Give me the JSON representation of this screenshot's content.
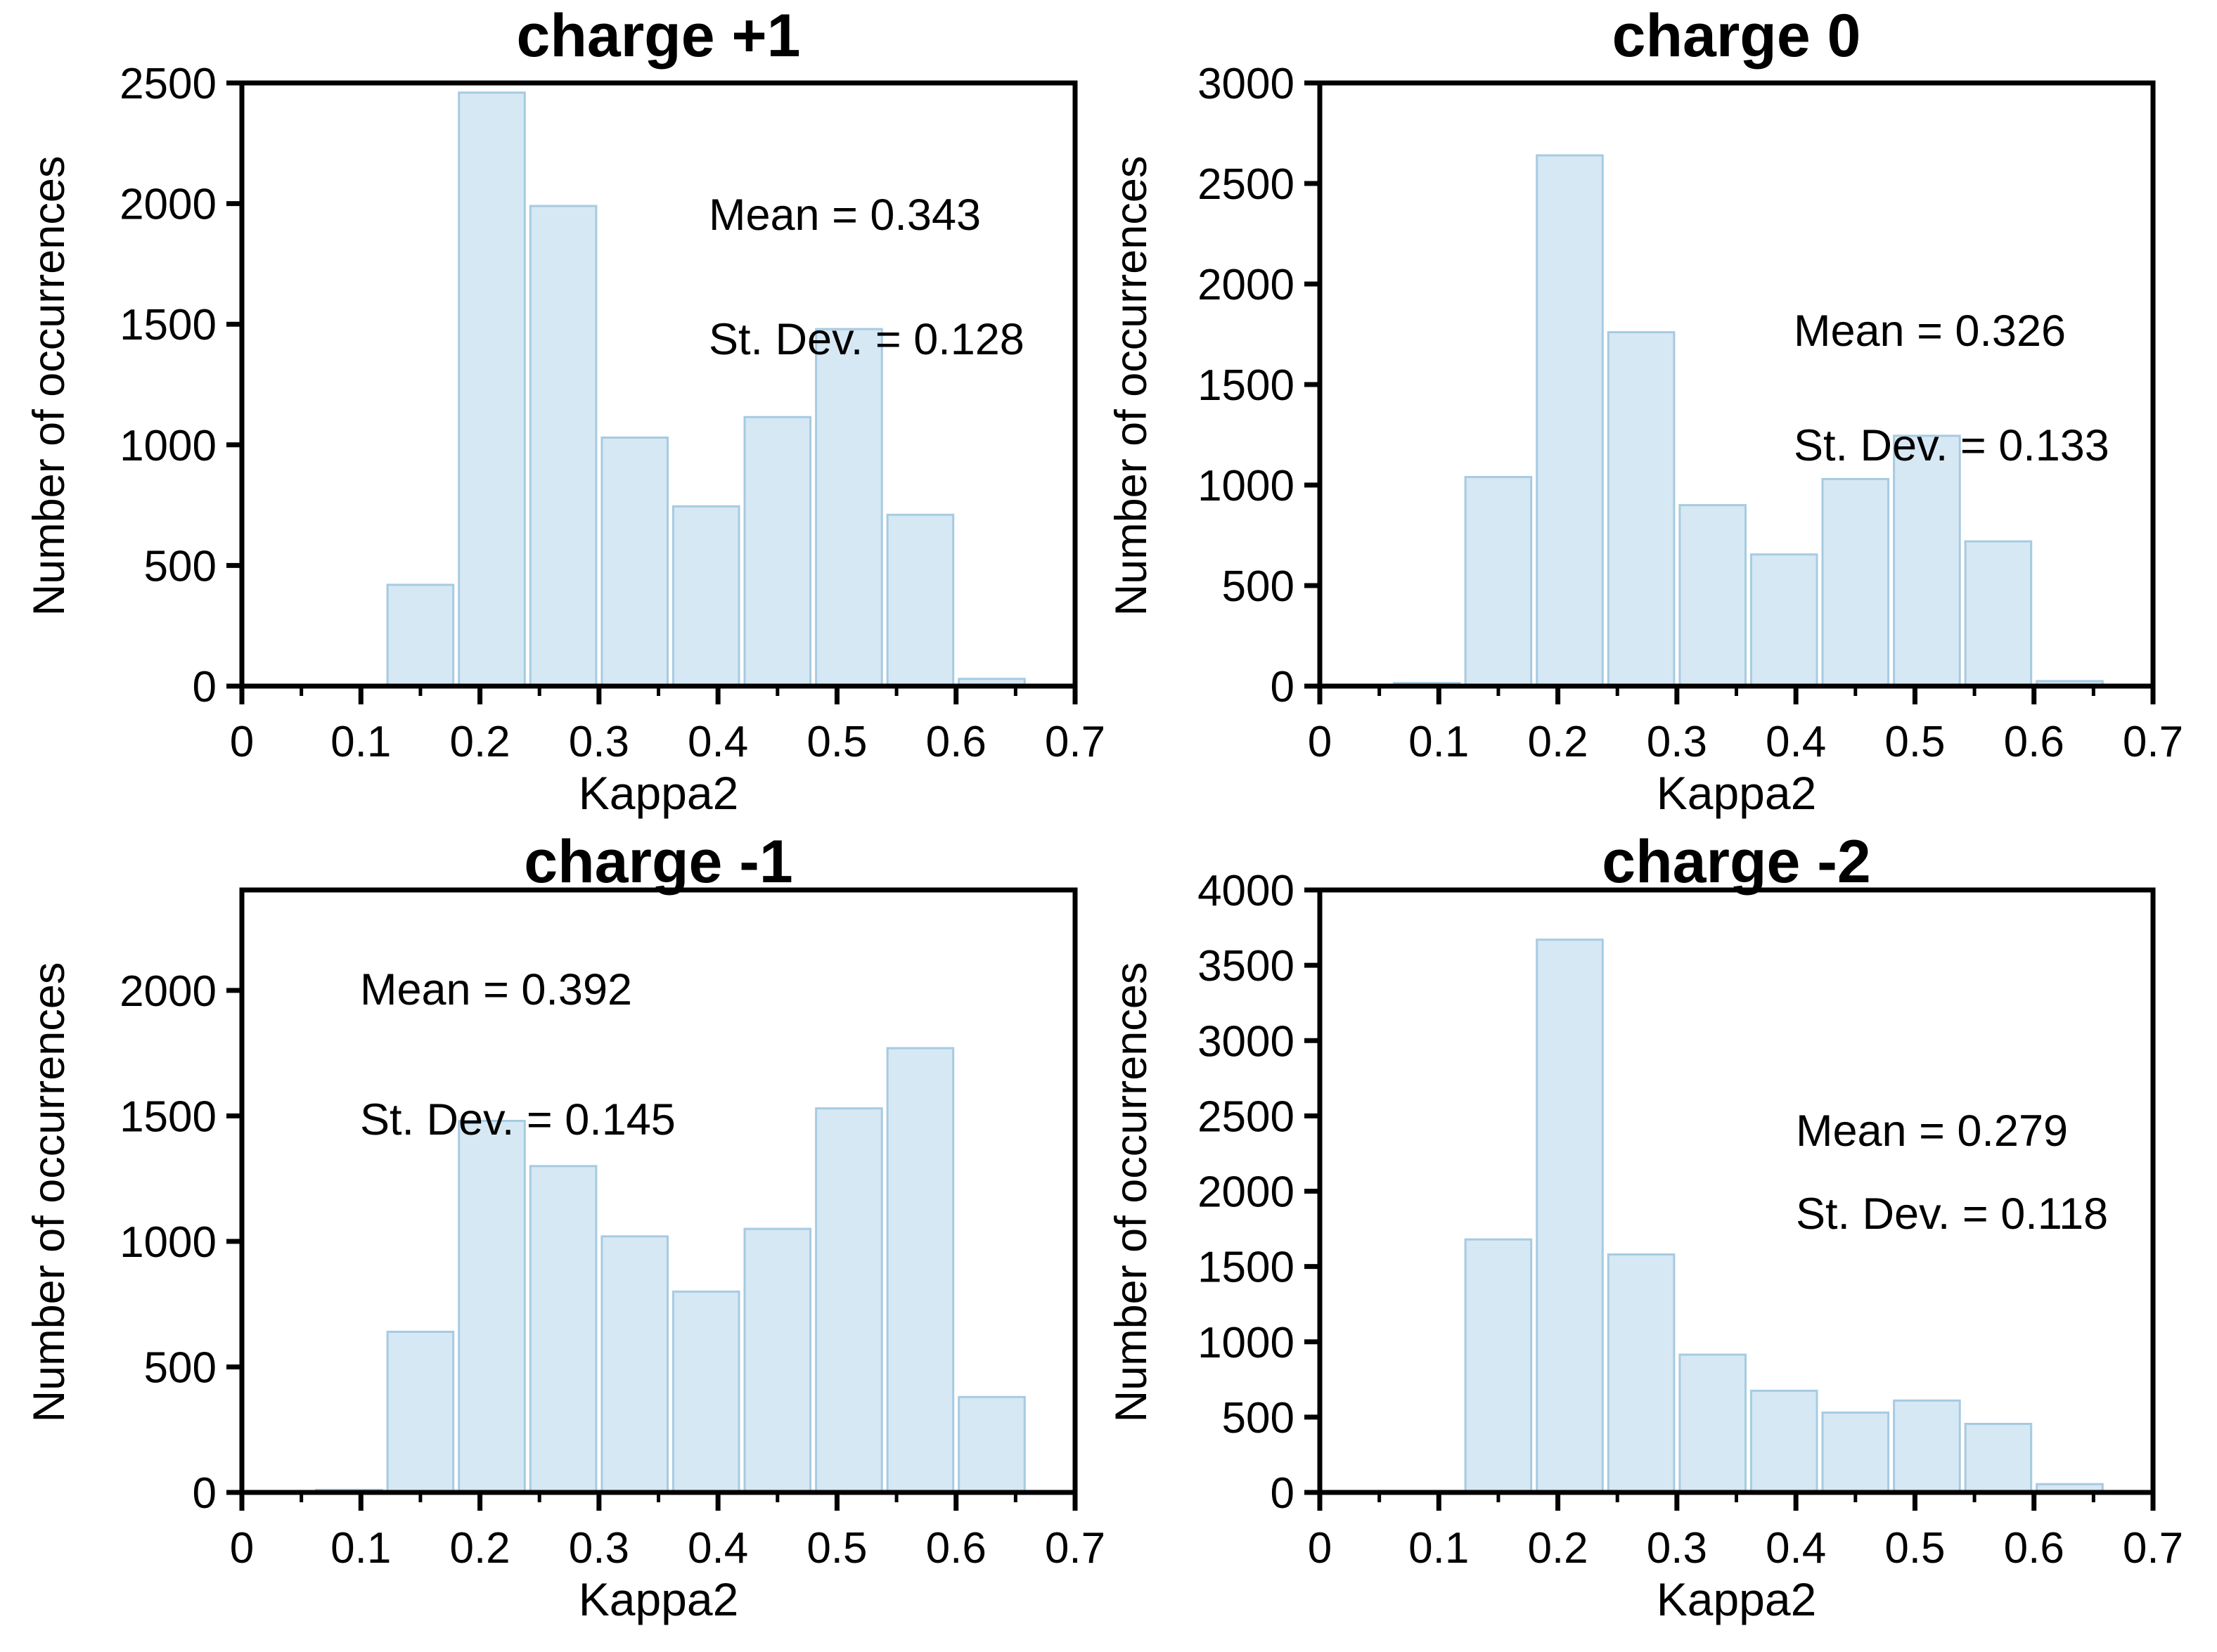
{
  "colors": {
    "background": "#ffffff",
    "bar_fill": "#d6e8f3",
    "bar_edge": "#a6cbe2",
    "axis": "#000000"
  },
  "chart_data": [
    {
      "type": "bar",
      "title": "charge +1",
      "xlabel": "Kappa2",
      "ylabel": "Number of occurrences",
      "annotations": [
        "Mean = 0.343",
        "St. Dev. = 0.128"
      ],
      "mean": 0.343,
      "st_dev": 0.128,
      "xlim": [
        0,
        0.7
      ],
      "ylim": [
        0,
        2500
      ],
      "xticks": [
        0,
        0.1,
        0.2,
        0.3,
        0.4,
        0.5,
        0.6,
        0.7
      ],
      "xminorticks": [
        0.05,
        0.15,
        0.25,
        0.35,
        0.45,
        0.55,
        0.65
      ],
      "yticks": [
        0,
        500,
        1000,
        1500,
        2000,
        2500
      ],
      "grid": false,
      "bin_width": 0.06,
      "bins": [
        {
          "x0": 0.12,
          "count": 420
        },
        {
          "x0": 0.18,
          "count": 2460
        },
        {
          "x0": 0.24,
          "count": 1990
        },
        {
          "x0": 0.3,
          "count": 1030
        },
        {
          "x0": 0.36,
          "count": 745
        },
        {
          "x0": 0.42,
          "count": 1115
        },
        {
          "x0": 0.48,
          "count": 1480
        },
        {
          "x0": 0.54,
          "count": 710
        },
        {
          "x0": 0.6,
          "count": 30
        }
      ]
    },
    {
      "type": "bar",
      "title": "charge 0",
      "xlabel": "Kappa2",
      "ylabel": "Number of occurrences",
      "annotations": [
        "Mean = 0.326",
        "St. Dev. = 0.133"
      ],
      "mean": 0.326,
      "st_dev": 0.133,
      "xlim": [
        0,
        0.7
      ],
      "ylim": [
        0,
        3000
      ],
      "xticks": [
        0,
        0.1,
        0.2,
        0.3,
        0.4,
        0.5,
        0.6,
        0.7
      ],
      "xminorticks": [
        0.05,
        0.15,
        0.25,
        0.35,
        0.45,
        0.55,
        0.65
      ],
      "yticks": [
        0,
        500,
        1000,
        1500,
        2000,
        2500,
        3000
      ],
      "grid": false,
      "bin_width": 0.06,
      "bins": [
        {
          "x0": 0.06,
          "count": 15
        },
        {
          "x0": 0.12,
          "count": 1040
        },
        {
          "x0": 0.18,
          "count": 2640
        },
        {
          "x0": 0.24,
          "count": 1760
        },
        {
          "x0": 0.3,
          "count": 900
        },
        {
          "x0": 0.36,
          "count": 655
        },
        {
          "x0": 0.42,
          "count": 1030
        },
        {
          "x0": 0.48,
          "count": 1245
        },
        {
          "x0": 0.54,
          "count": 720
        },
        {
          "x0": 0.6,
          "count": 25
        }
      ]
    },
    {
      "type": "bar",
      "title": "charge -1",
      "xlabel": "Kappa2",
      "ylabel": "Number of occurrences",
      "annotations": [
        "Mean = 0.392",
        "St. Dev. = 0.145"
      ],
      "mean": 0.392,
      "st_dev": 0.145,
      "xlim": [
        0,
        0.7
      ],
      "ylim": [
        0,
        2400
      ],
      "xticks": [
        0,
        0.1,
        0.2,
        0.3,
        0.4,
        0.5,
        0.6,
        0.7
      ],
      "xminorticks": [
        0.05,
        0.15,
        0.25,
        0.35,
        0.45,
        0.55,
        0.65
      ],
      "yticks": [
        0,
        500,
        1000,
        1500,
        2000
      ],
      "grid": false,
      "bin_width": 0.06,
      "bins": [
        {
          "x0": 0.06,
          "count": 10
        },
        {
          "x0": 0.12,
          "count": 640
        },
        {
          "x0": 0.18,
          "count": 1480
        },
        {
          "x0": 0.24,
          "count": 1300
        },
        {
          "x0": 0.3,
          "count": 1020
        },
        {
          "x0": 0.36,
          "count": 800
        },
        {
          "x0": 0.42,
          "count": 1050
        },
        {
          "x0": 0.48,
          "count": 1530
        },
        {
          "x0": 0.54,
          "count": 1770
        },
        {
          "x0": 0.6,
          "count": 380
        }
      ]
    },
    {
      "type": "bar",
      "title": "charge -2",
      "xlabel": "Kappa2",
      "ylabel": "Number of occurrences",
      "annotations": [
        "Mean = 0.279",
        "St. Dev. = 0.118"
      ],
      "mean": 0.279,
      "st_dev": 0.118,
      "xlim": [
        0,
        0.7
      ],
      "ylim": [
        0,
        4000
      ],
      "xticks": [
        0,
        0.1,
        0.2,
        0.3,
        0.4,
        0.5,
        0.6,
        0.7
      ],
      "xminorticks": [
        0.05,
        0.15,
        0.25,
        0.35,
        0.45,
        0.55,
        0.65
      ],
      "yticks": [
        0,
        500,
        1000,
        1500,
        2000,
        2500,
        3000,
        3500,
        4000
      ],
      "grid": false,
      "bin_width": 0.06,
      "bins": [
        {
          "x0": 0.12,
          "count": 1680
        },
        {
          "x0": 0.18,
          "count": 3670
        },
        {
          "x0": 0.24,
          "count": 1580
        },
        {
          "x0": 0.3,
          "count": 915
        },
        {
          "x0": 0.36,
          "count": 675
        },
        {
          "x0": 0.42,
          "count": 530
        },
        {
          "x0": 0.48,
          "count": 610
        },
        {
          "x0": 0.54,
          "count": 455
        },
        {
          "x0": 0.6,
          "count": 55
        }
      ]
    }
  ]
}
